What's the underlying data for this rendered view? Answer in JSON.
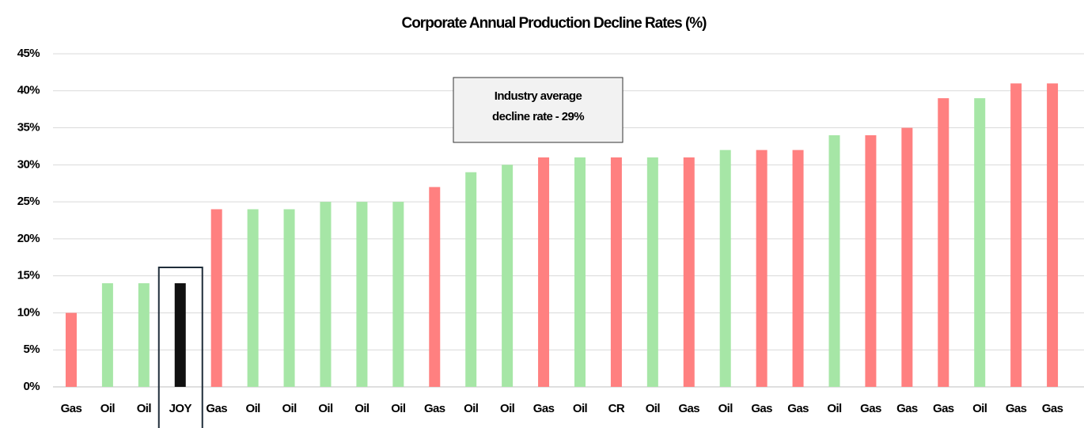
{
  "chart_data": {
    "type": "bar",
    "title": "Corporate Annual Production Decline Rates (%)",
    "categories": [
      "Gas",
      "Oil",
      "Oil",
      "JOY",
      "Gas",
      "Oil",
      "Oil",
      "Oil",
      "Oil",
      "Oil",
      "Gas",
      "Oil",
      "Oil",
      "Gas",
      "Oil",
      "CR",
      "Oil",
      "Gas",
      "Oil",
      "Gas",
      "Gas",
      "Oil",
      "Gas",
      "Gas",
      "Gas",
      "Oil",
      "Gas",
      "Gas"
    ],
    "values": [
      10,
      14,
      14,
      14,
      24,
      24,
      24,
      25,
      25,
      25,
      27,
      29,
      30,
      31,
      31,
      31,
      31,
      31,
      32,
      32,
      32,
      34,
      34,
      35,
      39,
      39,
      41,
      41
    ],
    "colors": [
      "#ff8080",
      "#a6e6a6",
      "#a6e6a6",
      "#111111",
      "#ff8080",
      "#a6e6a6",
      "#a6e6a6",
      "#a6e6a6",
      "#a6e6a6",
      "#a6e6a6",
      "#ff8080",
      "#a6e6a6",
      "#a6e6a6",
      "#ff8080",
      "#a6e6a6",
      "#ff8080",
      "#a6e6a6",
      "#ff8080",
      "#a6e6a6",
      "#ff8080",
      "#ff8080",
      "#a6e6a6",
      "#ff8080",
      "#ff8080",
      "#ff8080",
      "#a6e6a6",
      "#ff8080",
      "#ff8080"
    ],
    "ylim": [
      0,
      45
    ],
    "yticks": [
      {
        "value": 0,
        "label": "0%"
      },
      {
        "value": 5,
        "label": "5%"
      },
      {
        "value": 10,
        "label": "10%"
      },
      {
        "value": 15,
        "label": "15%"
      },
      {
        "value": 20,
        "label": "20%"
      },
      {
        "value": 25,
        "label": "25%"
      },
      {
        "value": 30,
        "label": "30%"
      },
      {
        "value": 35,
        "label": "35%"
      },
      {
        "value": 40,
        "label": "40%"
      },
      {
        "value": 45,
        "label": "45%"
      }
    ],
    "grid": true,
    "annotation": [
      "Industry average",
      "decline rate - 29%"
    ]
  }
}
